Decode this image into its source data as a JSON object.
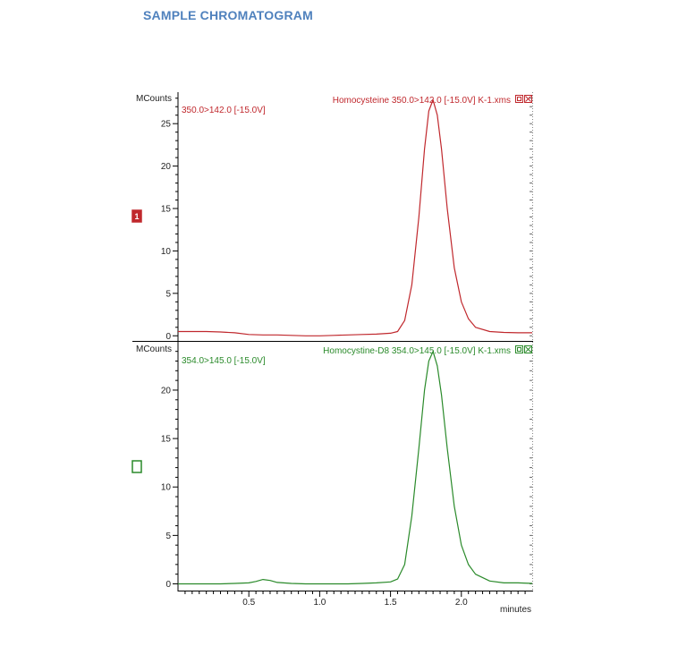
{
  "heading": "SAMPLE CHROMATOGRAM",
  "chart_data": {
    "type": "line",
    "x_axis": {
      "label": "minutes",
      "ticks": [
        "0.5",
        "1.0",
        "1.5",
        "2.0"
      ],
      "tick_values": [
        0.5,
        1.0,
        1.5,
        2.0
      ],
      "xlim": [
        0.0,
        2.5
      ]
    },
    "panels": [
      {
        "id": "1",
        "y_label": "MCounts",
        "y_ticks": [
          0,
          5,
          10,
          15,
          20,
          25
        ],
        "ylim": [
          -0.5,
          28.5
        ],
        "trace_label": "350.0>142.0 [-15.0V]",
        "file_label": "Homocysteine 350.0>142.0 [-15.0V] K-1.xms",
        "color": "#c0282d",
        "x": [
          0.0,
          0.1,
          0.2,
          0.3,
          0.4,
          0.5,
          0.6,
          0.7,
          0.8,
          0.9,
          1.0,
          1.1,
          1.2,
          1.3,
          1.4,
          1.5,
          1.55,
          1.6,
          1.65,
          1.7,
          1.74,
          1.77,
          1.8,
          1.83,
          1.86,
          1.9,
          1.95,
          2.0,
          2.05,
          2.1,
          2.2,
          2.3,
          2.4,
          2.5
        ],
        "y": [
          0.5,
          0.5,
          0.5,
          0.45,
          0.35,
          0.15,
          0.1,
          0.1,
          0.05,
          0.0,
          0.0,
          0.05,
          0.1,
          0.15,
          0.2,
          0.3,
          0.5,
          1.8,
          6.0,
          14.0,
          22.0,
          26.5,
          27.8,
          26.0,
          22.0,
          15.0,
          8.0,
          4.0,
          2.0,
          1.0,
          0.5,
          0.4,
          0.35,
          0.35
        ]
      },
      {
        "id": "2",
        "y_label": "MCounts",
        "y_ticks": [
          0,
          5,
          10,
          15,
          20
        ],
        "ylim": [
          -0.6,
          24.8
        ],
        "trace_label": "354.0>145.0 [-15.0V]",
        "file_label": "Homocystine-D8 354.0>145.0 [-15.0V] K-1.xms",
        "color": "#2a8a2a",
        "x": [
          0.0,
          0.1,
          0.2,
          0.3,
          0.4,
          0.5,
          0.55,
          0.6,
          0.65,
          0.7,
          0.8,
          0.9,
          1.0,
          1.1,
          1.2,
          1.3,
          1.4,
          1.5,
          1.55,
          1.6,
          1.65,
          1.7,
          1.74,
          1.77,
          1.8,
          1.83,
          1.86,
          1.9,
          1.95,
          2.0,
          2.05,
          2.1,
          2.2,
          2.3,
          2.4,
          2.5
        ],
        "y": [
          0.0,
          0.0,
          0.0,
          0.0,
          0.05,
          0.1,
          0.25,
          0.45,
          0.35,
          0.15,
          0.05,
          0.0,
          0.0,
          0.0,
          0.0,
          0.05,
          0.1,
          0.2,
          0.5,
          2.0,
          7.0,
          14.0,
          20.0,
          23.0,
          24.0,
          22.5,
          19.5,
          14.0,
          8.0,
          4.0,
          2.0,
          1.0,
          0.3,
          0.1,
          0.1,
          0.05
        ]
      }
    ]
  }
}
